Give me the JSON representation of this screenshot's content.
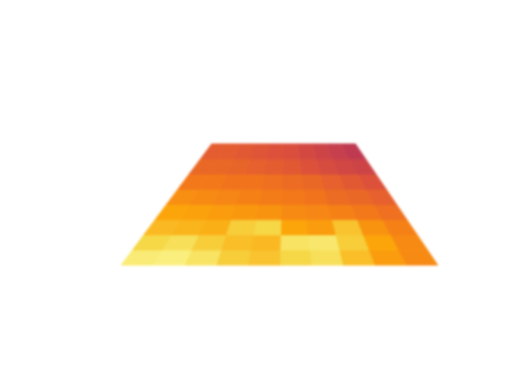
{
  "chart_data": {
    "type": "heatmap",
    "color": "inferno",
    "tick_labels": false,
    "grid": false,
    "clim": [
      0,
      1
    ],
    "cells": [
      [
        0.63,
        0.63,
        0.62,
        0.61,
        0.6,
        0.59,
        0.57,
        0.55,
        0.53,
        0.51
      ],
      [
        0.66,
        0.66,
        0.65,
        0.64,
        0.63,
        0.62,
        0.6,
        0.58,
        0.56,
        0.55
      ],
      [
        0.7,
        0.7,
        0.69,
        0.69,
        0.68,
        0.67,
        0.66,
        0.64,
        0.62,
        0.6
      ],
      [
        0.75,
        0.74,
        0.73,
        0.72,
        0.71,
        0.7,
        0.69,
        0.67,
        0.66,
        0.64
      ],
      [
        0.8,
        0.79,
        0.78,
        0.77,
        0.76,
        0.74,
        0.73,
        0.72,
        0.7,
        0.68
      ],
      [
        0.84,
        0.83,
        0.82,
        0.88,
        0.9,
        0.8,
        0.78,
        0.86,
        0.76,
        0.72
      ],
      [
        0.9,
        0.92,
        0.88,
        0.85,
        0.84,
        0.93,
        0.94,
        0.88,
        0.8,
        0.74
      ],
      [
        0.95,
        0.96,
        0.93,
        0.88,
        0.86,
        0.9,
        0.92,
        0.85,
        0.78,
        0.74
      ]
    ]
  }
}
